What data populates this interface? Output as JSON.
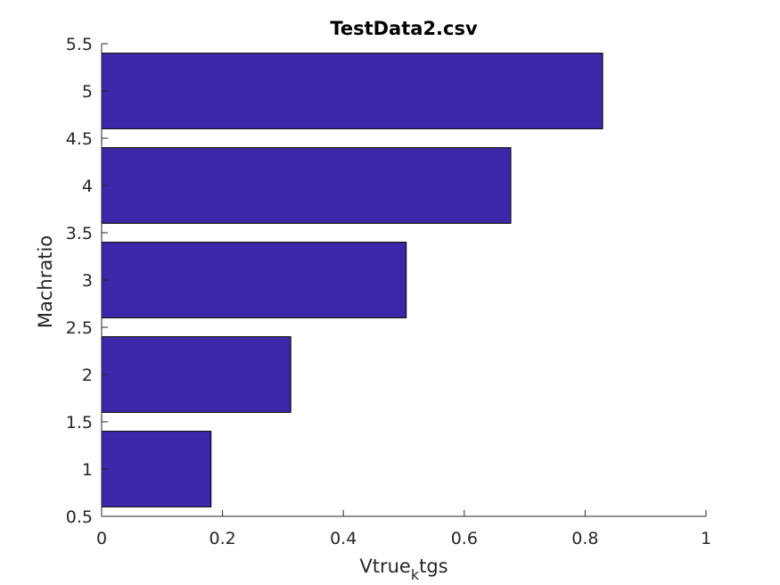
{
  "chart_data": {
    "type": "bar",
    "orientation": "horizontal",
    "title": "TestData2.csv",
    "xlabel": "Vtrue",
    "xlabel_subscript": "k",
    "xlabel_suffix": "tgs",
    "ylabel": "Machratio",
    "categories": [
      1,
      2,
      3,
      4,
      5
    ],
    "values": [
      0.181,
      0.313,
      0.504,
      0.677,
      0.829
    ],
    "xlim": [
      0,
      1
    ],
    "ylim": [
      0.5,
      5.5
    ],
    "xticks": [
      "0",
      "0.2",
      "0.4",
      "0.6",
      "0.8",
      "1"
    ],
    "yticks": [
      "0.5",
      "1",
      "1.5",
      "2",
      "2.5",
      "3",
      "3.5",
      "4",
      "4.5",
      "5",
      "5.5"
    ],
    "grid": false,
    "bar_color": "#3d27a8",
    "bar_edge_color": "#000000"
  }
}
